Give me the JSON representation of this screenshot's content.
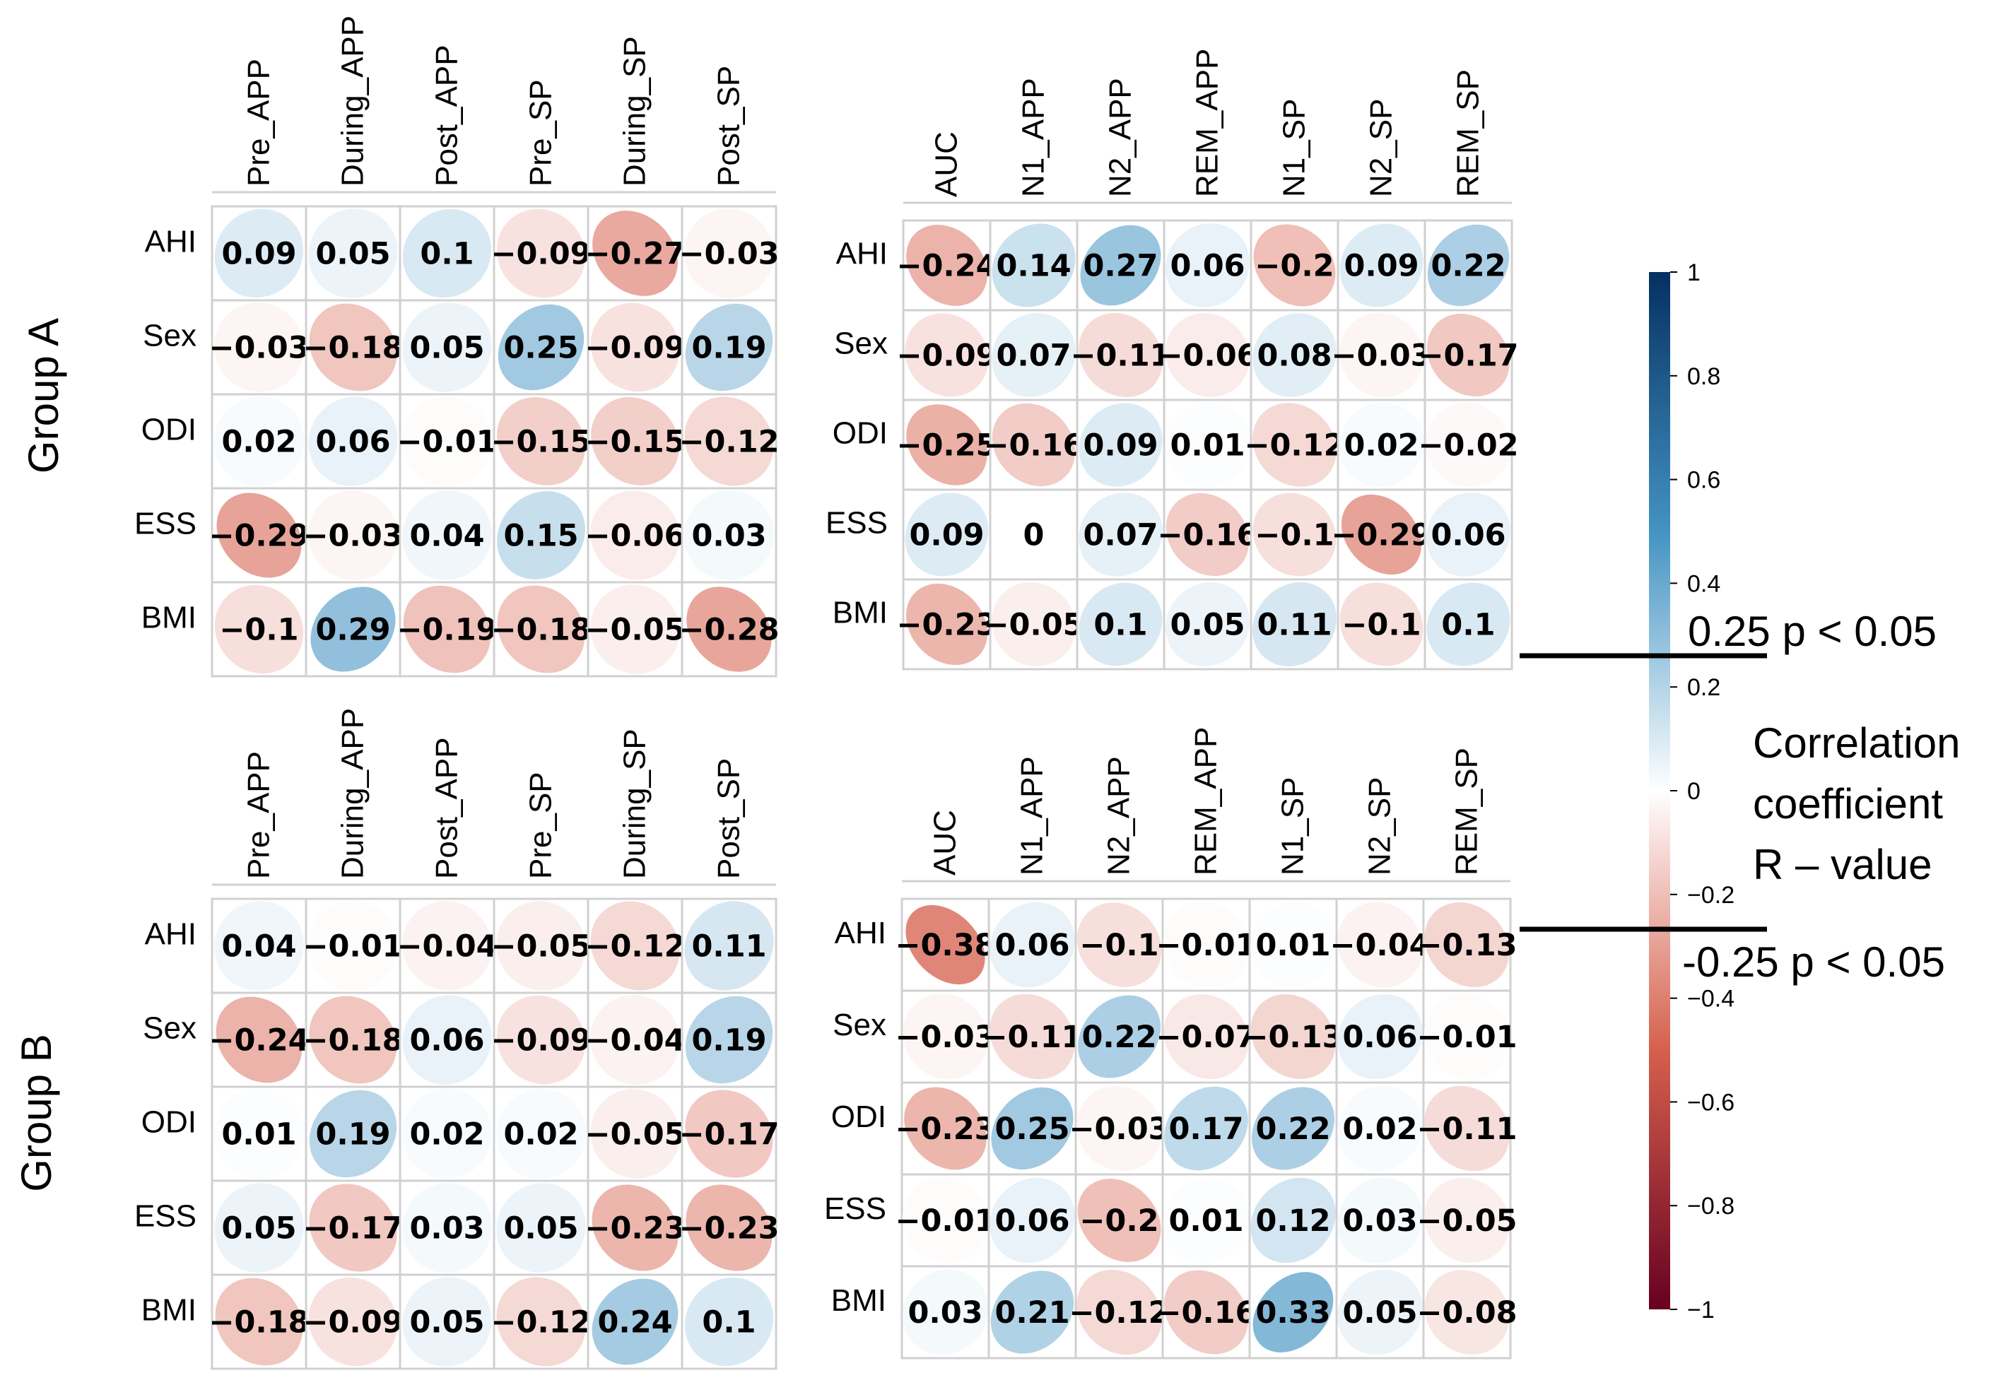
{
  "chart_data": [
    {
      "type": "heatmap",
      "group": "Group A",
      "panel": "left",
      "columns": [
        "Pre_APP",
        "During_APP",
        "Post_APP",
        "Pre_SP",
        "During_SP",
        "Post_SP"
      ],
      "rows": [
        "AHI",
        "Sex",
        "ODI",
        "ESS",
        "BMI"
      ],
      "values": [
        [
          0.09,
          0.05,
          0.1,
          -0.09,
          -0.27,
          -0.03
        ],
        [
          -0.03,
          -0.18,
          0.05,
          0.25,
          -0.09,
          0.19
        ],
        [
          0.02,
          0.06,
          -0.01,
          -0.15,
          -0.15,
          -0.12
        ],
        [
          -0.29,
          -0.03,
          0.04,
          0.15,
          -0.06,
          0.03
        ],
        [
          -0.1,
          0.29,
          -0.19,
          -0.18,
          -0.05,
          -0.28
        ]
      ],
      "labels": [
        [
          "0.09",
          "0.05",
          "0.1",
          "−0.09",
          "−0.27",
          "−0.03"
        ],
        [
          "−0.03",
          "−0.18",
          "0.05",
          "0.25",
          "−0.09",
          "0.19"
        ],
        [
          "0.02",
          "0.06",
          "−0.01",
          "−0.15",
          "−0.15",
          "−0.12"
        ],
        [
          "−0.29",
          "−0.03",
          "0.04",
          "0.15",
          "−0.06",
          "0.03"
        ],
        [
          "−0.1",
          "0.29",
          "−0.19",
          "−0.18",
          "−0.05",
          "−0.28"
        ]
      ]
    },
    {
      "type": "heatmap",
      "group": "Group A",
      "panel": "right",
      "columns": [
        "AUC",
        "N1_APP",
        "N2_APP",
        "REM_APP",
        "N1_SP",
        "N2_SP",
        "REM_SP"
      ],
      "rows": [
        "AHI",
        "Sex",
        "ODI",
        "ESS",
        "BMI"
      ],
      "values": [
        [
          -0.24,
          0.14,
          0.27,
          0.06,
          -0.2,
          0.09,
          0.22
        ],
        [
          -0.09,
          0.07,
          -0.11,
          -0.06,
          0.08,
          -0.03,
          -0.17
        ],
        [
          -0.25,
          -0.16,
          0.09,
          0.01,
          -0.12,
          0.02,
          -0.02
        ],
        [
          0.09,
          0,
          0.07,
          -0.16,
          -0.1,
          -0.29,
          0.06
        ],
        [
          -0.23,
          -0.05,
          0.1,
          0.05,
          0.11,
          -0.1,
          0.1
        ]
      ],
      "labels": [
        [
          "−0.24",
          "0.14",
          "0.27",
          "0.06",
          "−0.2",
          "0.09",
          "0.22"
        ],
        [
          "−0.09",
          "0.07",
          "−0.11",
          "−0.06",
          "0.08",
          "−0.03",
          "−0.17"
        ],
        [
          "−0.25",
          "−0.16",
          "0.09",
          "0.01",
          "−0.12",
          "0.02",
          "−0.02"
        ],
        [
          "0.09",
          "0",
          "0.07",
          "−0.16",
          "−0.1",
          "−0.29",
          "0.06"
        ],
        [
          "−0.23",
          "−0.05",
          "0.1",
          "0.05",
          "0.11",
          "−0.1",
          "0.1"
        ]
      ]
    },
    {
      "type": "heatmap",
      "group": "Group B",
      "panel": "left",
      "columns": [
        "Pre_APP",
        "During_APP",
        "Post_APP",
        "Pre_SP",
        "During_SP",
        "Post_SP"
      ],
      "rows": [
        "AHI",
        "Sex",
        "ODI",
        "ESS",
        "BMI"
      ],
      "values": [
        [
          0.04,
          -0.01,
          -0.04,
          -0.05,
          -0.12,
          0.11
        ],
        [
          -0.24,
          -0.18,
          0.06,
          -0.09,
          -0.04,
          0.19
        ],
        [
          0.01,
          0.19,
          0.02,
          0.02,
          -0.05,
          -0.17
        ],
        [
          0.05,
          -0.17,
          0.03,
          0.05,
          -0.23,
          -0.23
        ],
        [
          -0.18,
          -0.09,
          0.05,
          -0.12,
          0.24,
          0.1
        ]
      ],
      "labels": [
        [
          "0.04",
          "−0.01",
          "−0.04",
          "−0.05",
          "−0.12",
          "0.11"
        ],
        [
          "−0.24",
          "−0.18",
          "0.06",
          "−0.09",
          "−0.04",
          "0.19"
        ],
        [
          "0.01",
          "0.19",
          "0.02",
          "0.02",
          "−0.05",
          "−0.17"
        ],
        [
          "0.05",
          "−0.17",
          "0.03",
          "0.05",
          "−0.23",
          "−0.23"
        ],
        [
          "−0.18",
          "−0.09",
          "0.05",
          "−0.12",
          "0.24",
          "0.1"
        ]
      ]
    },
    {
      "type": "heatmap",
      "group": "Group B",
      "panel": "right",
      "columns": [
        "AUC",
        "N1_APP",
        "N2_APP",
        "REM_APP",
        "N1_SP",
        "N2_SP",
        "REM_SP"
      ],
      "rows": [
        "AHI",
        "Sex",
        "ODI",
        "ESS",
        "BMI"
      ],
      "values": [
        [
          -0.38,
          0.06,
          -0.1,
          -0.01,
          0.01,
          -0.04,
          -0.13
        ],
        [
          -0.03,
          -0.11,
          0.22,
          -0.07,
          -0.13,
          0.06,
          -0.01
        ],
        [
          -0.23,
          0.25,
          -0.03,
          0.17,
          0.22,
          0.02,
          -0.11
        ],
        [
          -0.01,
          0.06,
          -0.2,
          0.01,
          0.12,
          0.03,
          -0.05
        ],
        [
          0.03,
          0.21,
          -0.12,
          -0.16,
          0.33,
          0.05,
          -0.08
        ]
      ],
      "labels": [
        [
          "−0.38",
          "0.06",
          "−0.1",
          "−0.01",
          "0.01",
          "−0.04",
          "−0.13"
        ],
        [
          "−0.03",
          "−0.11",
          "0.22",
          "−0.07",
          "−0.13",
          "0.06",
          "−0.01"
        ],
        [
          "−0.23",
          "0.25",
          "−0.03",
          "0.17",
          "0.22",
          "0.02",
          "−0.11"
        ],
        [
          "−0.01",
          "0.06",
          "−0.2",
          "0.01",
          "0.12",
          "0.03",
          "−0.05"
        ],
        [
          "0.03",
          "0.21",
          "−0.12",
          "−0.16",
          "0.33",
          "0.05",
          "−0.08"
        ]
      ]
    }
  ],
  "groups": [
    "Group A",
    "Group B"
  ],
  "colorbar": {
    "range": [
      -1,
      1
    ],
    "ticks": [
      1,
      0.8,
      0.6,
      0.4,
      0.2,
      0,
      -0.2,
      -0.4,
      -0.6,
      -0.8,
      -1
    ],
    "tick_labels": [
      "1",
      "0.8",
      "0.6",
      "0.4",
      "0.2",
      "0",
      "−0.2",
      "−0.4",
      "−0.6",
      "−0.8",
      "−1"
    ],
    "title_lines": [
      "Correlation",
      "coefficient",
      "R – value"
    ],
    "upper_threshold": {
      "value": 0.25,
      "text": "0.25 p < 0.05"
    },
    "lower_threshold": {
      "value": -0.25,
      "text": "-0.25 p < 0.05"
    },
    "colors": {
      "neg_end": "#67001f",
      "neg": "#d6604d",
      "mid": "#ffffff",
      "pos": "#4393c3",
      "pos_end": "#053061"
    }
  }
}
